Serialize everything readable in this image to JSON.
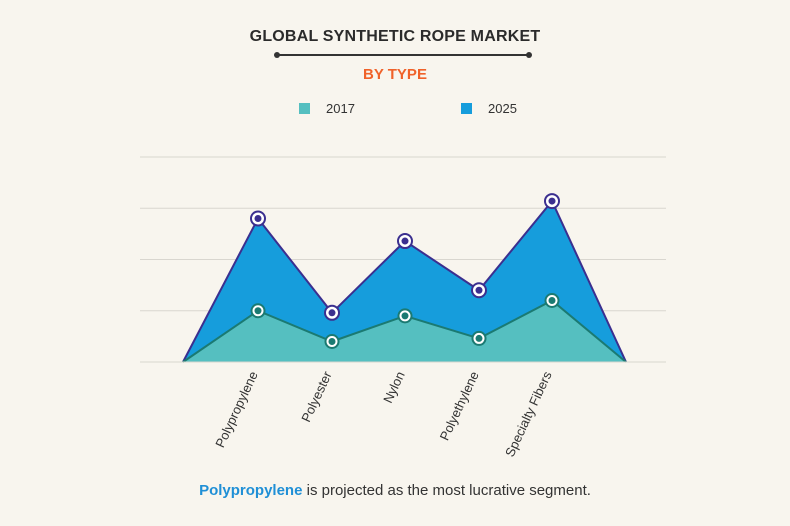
{
  "header": {
    "title": "GLOBAL SYNTHETIC ROPE MARKET",
    "subtitle": "BY TYPE"
  },
  "footer": {
    "highlight": "Polypropylene",
    "text": " is projected as the most lucrative segment."
  },
  "colors": {
    "series_2017_fill": "#55bfc0",
    "series_2017_line": "#1b7a72",
    "series_2025_fill": "#169ddc",
    "series_2025_line": "#3b2f8f",
    "grid": "#d9d6cf",
    "title_accent": "#f0622a"
  },
  "chart_data": {
    "type": "area",
    "title": "GLOBAL SYNTHETIC ROPE MARKET",
    "subtitle": "BY TYPE",
    "xlabel": "",
    "ylabel": "",
    "categories": [
      "Polypropylene",
      "Polyester",
      "Nylon",
      "Polyethylene",
      "Specialty Fibers"
    ],
    "series": [
      {
        "name": "2017",
        "values": [
          50,
          20,
          45,
          23,
          60
        ]
      },
      {
        "name": "2025",
        "values": [
          140,
          48,
          118,
          70,
          157
        ]
      }
    ],
    "ylim": [
      0,
      200
    ],
    "grid": true,
    "y_tick_labels_shown": false,
    "legend_position": "top-center"
  }
}
